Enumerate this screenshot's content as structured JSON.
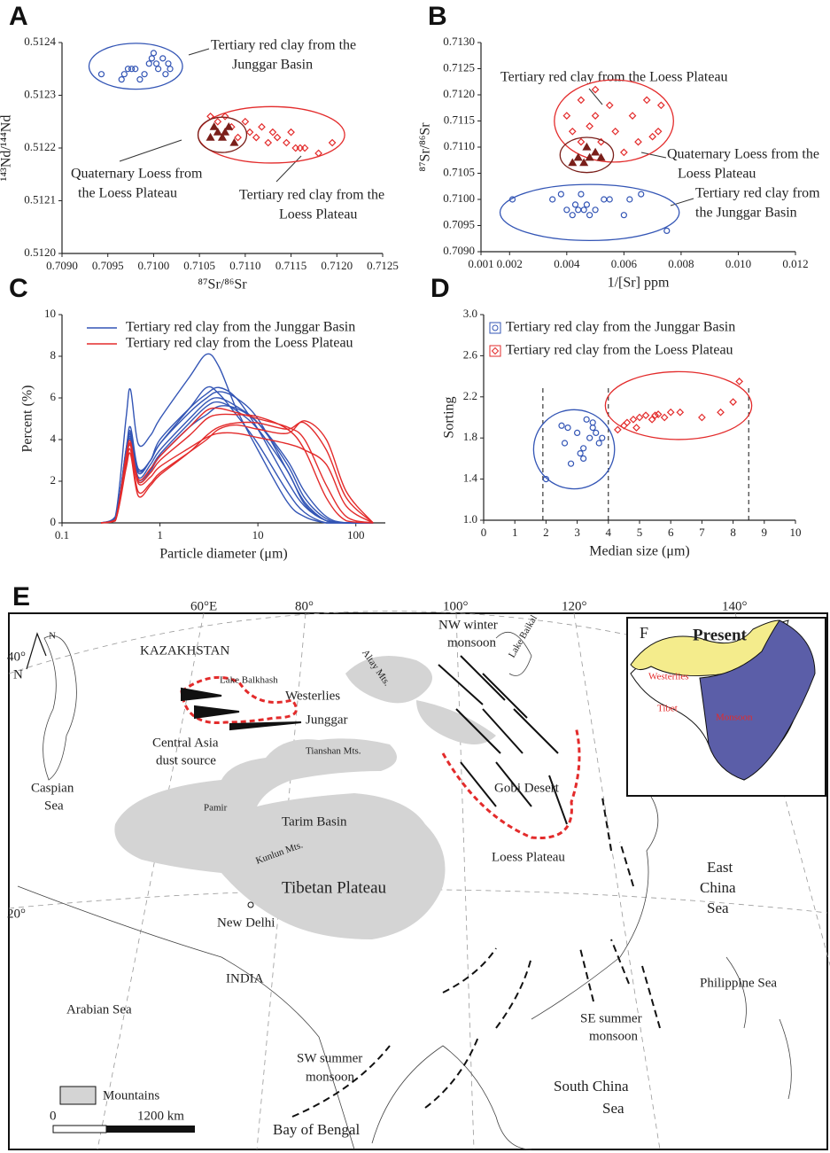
{
  "chart_data": [
    {
      "type": "scatter",
      "label": "A",
      "xlabel": "⁸⁷Sr/⁸⁶Sr",
      "ylabel": "¹⁴³Nd/¹⁴⁴Nd",
      "xlim": [
        0.709,
        0.7125
      ],
      "xticks": [
        {
          "value": 0.709,
          "label": "0.7090"
        },
        {
          "value": 0.7095,
          "label": "0.7095"
        },
        {
          "value": 0.71,
          "label": "0.7100"
        },
        {
          "value": 0.7105,
          "label": "0.7105"
        },
        {
          "value": 0.711,
          "label": "0.7110"
        },
        {
          "value": 0.7115,
          "label": "0.7115"
        },
        {
          "value": 0.712,
          "label": "0.7120"
        },
        {
          "value": 0.7125,
          "label": "0.7125"
        }
      ],
      "ylim": [
        0.512,
        0.5124
      ],
      "yticks": [
        {
          "value": 0.512,
          "label": "0.5120"
        },
        {
          "value": 0.5121,
          "label": "0.5121"
        },
        {
          "value": 0.5122,
          "label": "0.5122"
        },
        {
          "value": 0.5123,
          "label": "0.5123"
        },
        {
          "value": 0.5124,
          "label": "0.5124"
        }
      ],
      "annotations": [
        [
          "Tertiary red clay from the",
          "Junggar Basin"
        ],
        [
          "Quaternary Loess from",
          "the Loess Plateau"
        ],
        [
          "Tertiary red clay from the",
          "Loess Plateau"
        ]
      ],
      "series": [
        {
          "color": "#3355b5",
          "marker": "circle",
          "x": [
            0.70943,
            0.70965,
            0.70968,
            0.70972,
            0.70976,
            0.7098,
            0.70985,
            0.7099,
            0.70995,
            0.70998,
            0.71,
            0.71003,
            0.71005,
            0.7101,
            0.71013,
            0.71016,
            0.71018
          ],
          "values": [
            0.51234,
            0.51233,
            0.51234,
            0.51235,
            0.51235,
            0.51235,
            0.51233,
            0.51234,
            0.51236,
            0.51237,
            0.51238,
            0.51236,
            0.51235,
            0.51237,
            0.51234,
            0.51236,
            0.51235
          ]
        },
        {
          "color": "#e32b2b",
          "marker": "diamond",
          "x": [
            0.71062,
            0.7107,
            0.71078,
            0.71085,
            0.71092,
            0.711,
            0.71105,
            0.71112,
            0.71118,
            0.71125,
            0.7113,
            0.71135,
            0.71145,
            0.7115,
            0.71155,
            0.7116,
            0.71165,
            0.7118,
            0.71195
          ],
          "values": [
            0.51226,
            0.51225,
            0.51226,
            0.51224,
            0.51222,
            0.51225,
            0.51223,
            0.51222,
            0.51224,
            0.51221,
            0.51223,
            0.51222,
            0.51221,
            0.51223,
            0.5122,
            0.5122,
            0.5122,
            0.51219,
            0.51221
          ]
        },
        {
          "color": "#7a1f1a",
          "marker": "triangle",
          "x": [
            0.71062,
            0.71066,
            0.7107,
            0.71075,
            0.71078,
            0.71082,
            0.71088
          ],
          "values": [
            0.51222,
            0.51224,
            0.51223,
            0.51222,
            0.51223,
            0.51224,
            0.51221
          ]
        }
      ]
    },
    {
      "type": "scatter",
      "label": "B",
      "xlabel": "1/[Sr] ppm",
      "ylabel": "⁸⁷Sr/⁸⁶Sr",
      "xlim": [
        0.001,
        0.012
      ],
      "xticks": [
        0.001,
        0.002,
        0.004,
        0.006,
        0.008,
        {
          "value": 0.01,
          "label": "0.010"
        },
        0.012
      ],
      "ylim": [
        0.709,
        0.713
      ],
      "yticks": [
        {
          "value": 0.709,
          "label": "0.7090"
        },
        0.7095,
        {
          "value": 0.71,
          "label": "0.7100"
        },
        0.7105,
        {
          "value": 0.711,
          "label": "0.7110"
        },
        0.7115,
        {
          "value": 0.712,
          "label": "0.7120"
        },
        0.7125,
        {
          "value": 0.713,
          "label": "0.7130"
        }
      ],
      "annotations": [
        [
          "Tertiary red clay from the Loess Plateau"
        ],
        [
          "Quaternary Loess from the",
          "Loess Plateau"
        ],
        [
          "Tertiary red clay from",
          "the Junggar Basin"
        ]
      ],
      "series": [
        {
          "color": "#e32b2b",
          "marker": "diamond",
          "x": [
            0.004,
            0.0042,
            0.0045,
            0.0048,
            0.005,
            0.0052,
            0.0055,
            0.0057,
            0.006,
            0.0063,
            0.0065,
            0.0068,
            0.007,
            0.0072,
            0.0073,
            0.0045,
            0.005
          ],
          "values": [
            0.7116,
            0.7113,
            0.7111,
            0.7114,
            0.7116,
            0.7111,
            0.7118,
            0.7113,
            0.7109,
            0.7116,
            0.7111,
            0.7119,
            0.7112,
            0.7113,
            0.7118,
            0.7119,
            0.7121
          ]
        },
        {
          "color": "#7a1f1a",
          "marker": "triangle",
          "x": [
            0.0042,
            0.0044,
            0.0046,
            0.0048,
            0.005,
            0.0052,
            0.0047
          ],
          "values": [
            0.7107,
            0.7108,
            0.7107,
            0.7108,
            0.7109,
            0.7108,
            0.711
          ]
        },
        {
          "color": "#3355b5",
          "marker": "circle",
          "x": [
            0.0021,
            0.0035,
            0.0038,
            0.004,
            0.0042,
            0.0043,
            0.0044,
            0.0045,
            0.0047,
            0.0048,
            0.005,
            0.0053,
            0.0055,
            0.006,
            0.0062,
            0.0066,
            0.0075,
            0.0046
          ],
          "values": [
            0.71,
            0.71,
            0.7101,
            0.7098,
            0.7097,
            0.7099,
            0.7098,
            0.7101,
            0.7099,
            0.7097,
            0.7098,
            0.71,
            0.71,
            0.7097,
            0.71,
            0.7101,
            0.7094,
            0.7098
          ]
        }
      ]
    },
    {
      "type": "line",
      "label": "C",
      "xlabel": "Particle diameter (μm)",
      "ylabel": "Percent (%)",
      "log_x": true,
      "xlim": [
        0.1,
        200
      ],
      "xticks": [
        0.1,
        1,
        10,
        100
      ],
      "ylim": [
        0,
        10
      ],
      "yticks": [
        0,
        2,
        4,
        6,
        8,
        10
      ],
      "x": [
        0.25,
        0.35,
        0.45,
        0.5,
        0.6,
        0.8,
        1,
        2,
        3,
        4,
        6,
        10,
        20,
        30,
        50,
        80,
        150
      ],
      "series": [
        {
          "name": "Tertiary red clay from the Junggar Basin",
          "color": "#3355b5",
          "values": [
            0,
            0.3,
            5,
            6.4,
            3.8,
            4.2,
            5,
            7,
            8.1,
            7.5,
            5.5,
            3.5,
            1,
            0.3,
            0,
            0,
            0
          ]
        },
        {
          "color": "#3355b5",
          "values": [
            0,
            0.2,
            3.5,
            4.6,
            2.6,
            3,
            4,
            5.5,
            6.2,
            6.5,
            6,
            4.5,
            2,
            0.8,
            0.1,
            0,
            0
          ]
        },
        {
          "color": "#3355b5",
          "values": [
            0,
            0.2,
            3.5,
            4.4,
            2.5,
            3,
            3.8,
            5.3,
            6,
            6.3,
            6,
            5,
            2.5,
            1,
            0.1,
            0,
            0
          ]
        },
        {
          "color": "#3355b5",
          "values": [
            0,
            0.2,
            3.4,
            4.2,
            2.2,
            2.8,
            3.5,
            5,
            5.8,
            6,
            5.6,
            4.8,
            2.8,
            1.2,
            0.2,
            0,
            0
          ]
        },
        {
          "color": "#3355b5",
          "values": [
            0,
            0.2,
            3.3,
            4.1,
            2.1,
            2.6,
            3.3,
            4.8,
            5.6,
            5.8,
            5.4,
            4.5,
            2.5,
            0.9,
            0.1,
            0,
            0
          ]
        },
        {
          "color": "#3355b5",
          "values": [
            0,
            0.2,
            3.4,
            4.3,
            2.4,
            3,
            3.8,
            5.5,
            6.5,
            6.2,
            5.2,
            3.8,
            1.5,
            0.5,
            0,
            0,
            0
          ]
        },
        {
          "color": "#3355b5",
          "values": [
            0,
            0.2,
            3.2,
            4,
            2,
            2.5,
            3.2,
            4.6,
            5.2,
            5.6,
            5.5,
            4.8,
            3,
            1.5,
            0.3,
            0,
            0
          ]
        },
        {
          "name": "Tertiary red clay from the Loess Plateau",
          "color": "#e32b2b",
          "values": [
            0,
            0.1,
            3,
            3.7,
            1.9,
            2.2,
            2.7,
            3.6,
            4.1,
            4.3,
            4.3,
            4.1,
            3.8,
            3.5,
            2.8,
            0.8,
            0
          ]
        },
        {
          "color": "#e32b2b",
          "values": [
            0,
            0.1,
            2.8,
            3.5,
            1.5,
            1.9,
            2.4,
            3.4,
            4,
            4.5,
            4.7,
            4.5,
            4.3,
            4.9,
            4,
            1.5,
            0
          ]
        },
        {
          "color": "#e32b2b",
          "values": [
            0,
            0.15,
            3.2,
            3.9,
            2.1,
            2.6,
            3.2,
            4.6,
            5.4,
            5.5,
            5.3,
            5,
            4.6,
            4,
            1.8,
            0.3,
            0
          ]
        },
        {
          "color": "#e32b2b",
          "values": [
            0,
            0.15,
            3,
            3.8,
            2,
            2.4,
            3,
            4.2,
            5,
            5.2,
            5.2,
            5.1,
            4.5,
            3.5,
            1.2,
            0.1,
            0
          ]
        },
        {
          "color": "#e32b2b",
          "values": [
            0,
            0.1,
            2.6,
            3.3,
            1.3,
            1.8,
            2.3,
            3.4,
            4.2,
            4.6,
            4.8,
            4.8,
            4.5,
            4.8,
            3.5,
            1.2,
            0
          ]
        }
      ]
    },
    {
      "type": "scatter",
      "label": "D",
      "xlabel": "Median size (μm)",
      "ylabel": "Sorting",
      "xlim": [
        0,
        10
      ],
      "xticks": [
        0,
        1,
        2,
        3,
        4,
        5,
        6,
        7,
        8,
        9,
        10
      ],
      "ylim": [
        1,
        3
      ],
      "yticks": [
        {
          "value": 1,
          "label": "1.0"
        },
        1.4,
        1.8,
        2.2,
        2.6,
        {
          "value": 3,
          "label": "3.0"
        }
      ],
      "vlines": [
        1.9,
        4,
        8.5
      ],
      "series": [
        {
          "name": "Tertiary red clay from the Junggar Basin",
          "color": "#3355b5",
          "marker": "circle",
          "x": [
            2,
            2.5,
            2.6,
            2.8,
            3,
            3.1,
            3.2,
            3.3,
            3.4,
            3.5,
            3.6,
            3.7,
            3.8,
            2.7,
            3.2,
            3.5
          ],
          "values": [
            1.4,
            1.92,
            1.75,
            1.55,
            1.85,
            1.65,
            1.7,
            1.98,
            1.8,
            1.9,
            1.85,
            1.75,
            1.8,
            1.9,
            1.6,
            1.95
          ]
        },
        {
          "name": "Tertiary red clay from the Loess Plateau",
          "color": "#e32b2b",
          "marker": "diamond",
          "x": [
            4.3,
            4.5,
            4.6,
            4.8,
            5,
            5.2,
            5.4,
            5.6,
            5.8,
            6,
            6.3,
            7,
            7.6,
            8,
            8.2,
            4.9,
            5.5
          ],
          "values": [
            1.88,
            1.92,
            1.95,
            1.98,
            2,
            2.02,
            1.98,
            2.03,
            2,
            2.05,
            2.05,
            2,
            2.05,
            2.15,
            2.35,
            1.9,
            2.02
          ]
        }
      ]
    }
  ],
  "map": {
    "label": "E",
    "lon": [
      "60°E",
      "80°",
      "100°",
      "120°",
      "140°"
    ],
    "lat": [
      "40°",
      "N",
      "20°"
    ],
    "places": [
      "KAZAKHSTAN",
      "Lake Balkhash",
      "Westerlies",
      "Altay Mts.",
      "Lake Baikal",
      "Junggar",
      "Tianshan Mts.",
      "Gobi Desert",
      "Pamir",
      "Tarim Basin",
      "Kunlun Mts.",
      "Loess Plateau",
      "Tibetan Plateau",
      "New Delhi",
      "INDIA",
      "Philippine Sea",
      "Arabian Sea",
      "Bay of Bengal",
      "N"
    ],
    "multiline": [
      [
        "NW winter",
        "monsoon"
      ],
      [
        "Central Asia",
        "dust source"
      ],
      [
        "Caspian",
        "Sea"
      ],
      [
        "East",
        "China",
        "Sea"
      ],
      [
        "SE summer",
        "monsoon"
      ],
      [
        "SW summer",
        "monsoon"
      ],
      [
        "South China",
        "Sea"
      ]
    ],
    "legend": "Mountains",
    "scale": [
      "0",
      "1200 km"
    ],
    "inset": {
      "label": "F",
      "title": "Present",
      "regions": [
        "Westerlies",
        "Tibet",
        "Monsoon"
      ]
    }
  }
}
